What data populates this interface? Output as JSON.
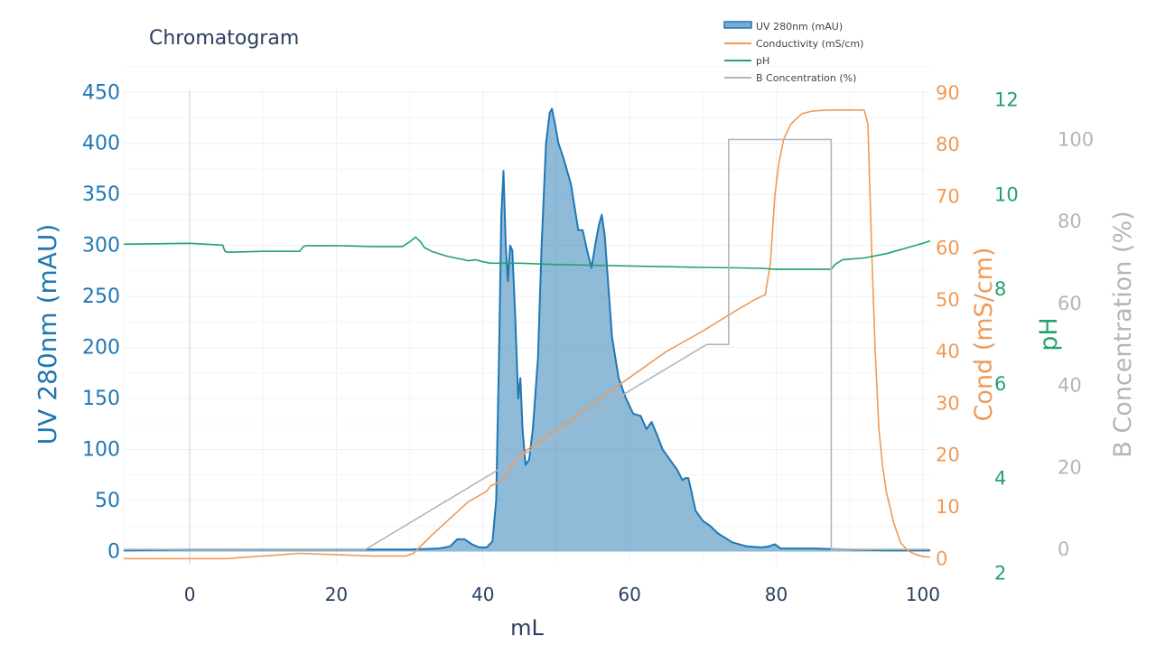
{
  "chart_data": {
    "type": "area",
    "title": "Chromatogram",
    "xlabel": "mL",
    "xlim": [
      -9,
      101
    ],
    "x_ticks": [
      0,
      20,
      40,
      60,
      80,
      100
    ],
    "grid": true,
    "legend_position": "top-right",
    "axes": {
      "uv": {
        "label": "UV 280nm (mAU)",
        "color": "#1f77b4",
        "range": [
          -12,
          452
        ],
        "ticks": [
          0,
          50,
          100,
          150,
          200,
          250,
          300,
          350,
          400,
          450
        ]
      },
      "cond": {
        "label": "Cond (mS/cm)",
        "color": "#ef9a57",
        "range": [
          -1,
          90.5
        ],
        "ticks": [
          0,
          10,
          20,
          30,
          40,
          50,
          60,
          70,
          80,
          90
        ]
      },
      "ph": {
        "label": "pH",
        "color": "#21a36b",
        "range": [
          2.2,
          12.2
        ],
        "ticks": [
          2,
          4,
          6,
          8,
          10,
          12
        ]
      },
      "bconc": {
        "label": "B Concentration (%)",
        "color": "#b5b5b5",
        "range": [
          -3.5,
          112
        ],
        "ticks": [
          0,
          20,
          40,
          60,
          80,
          100
        ]
      }
    },
    "series": [
      {
        "name": "UV 280nm (mAU)",
        "axis": "uv",
        "color": "#1f77b4",
        "fill": true,
        "x": [
          -9,
          0,
          10,
          20,
          30,
          34,
          35.5,
          36.5,
          37.5,
          38.5,
          39.5,
          40.5,
          41.3,
          41.8,
          42.2,
          42.5,
          42.8,
          43.1,
          43.4,
          43.7,
          44,
          44.4,
          44.8,
          45.1,
          45.4,
          45.8,
          46.3,
          46.8,
          47.5,
          48,
          48.6,
          49.1,
          49.4,
          49.8,
          50.3,
          51,
          52,
          53,
          53.6,
          54.2,
          54.8,
          55.3,
          55.8,
          56.2,
          56.6,
          57,
          57.6,
          58.5,
          59.5,
          60.5,
          61.5,
          62.3,
          63,
          63.7,
          64.5,
          65.5,
          66.5,
          67.2,
          67.6,
          68,
          68.4,
          69,
          70,
          71,
          72,
          74,
          76,
          78,
          79,
          79.8,
          80.6,
          82,
          85,
          90,
          95,
          101
        ],
        "y": [
          1,
          2,
          2,
          2,
          2,
          3,
          5,
          12,
          12,
          7,
          4,
          4,
          10,
          50,
          200,
          330,
          373,
          300,
          265,
          300,
          295,
          230,
          150,
          170,
          120,
          85,
          90,
          120,
          190,
          300,
          400,
          430,
          434,
          420,
          400,
          385,
          360,
          315,
          315,
          295,
          278,
          300,
          320,
          330,
          310,
          270,
          210,
          170,
          150,
          135,
          133,
          120,
          127,
          115,
          100,
          90,
          80,
          70,
          72,
          72,
          60,
          40,
          30,
          25,
          18,
          9,
          5,
          4,
          5,
          7,
          3,
          3,
          3,
          2,
          1,
          1
        ]
      },
      {
        "name": "Conductivity (mS/cm)",
        "axis": "cond",
        "color": "#ef9a57",
        "fill": false,
        "x": [
          -9,
          5,
          15,
          25,
          29.5,
          30.5,
          33,
          38,
          40.5,
          41,
          42.5,
          45,
          50,
          55,
          60,
          65,
          70,
          74,
          77,
          78.5,
          79.2,
          79.8,
          80.3,
          81,
          82,
          83.5,
          85,
          87,
          88,
          90,
          92,
          92.5,
          93,
          93.5,
          94,
          94.5,
          95,
          96,
          97,
          98,
          99,
          100,
          101
        ],
        "y": [
          0,
          0,
          1,
          0.5,
          0.5,
          1,
          4.5,
          11,
          13,
          14,
          15,
          20,
          25,
          30,
          35,
          40,
          44,
          47.5,
          50,
          51,
          57,
          70,
          76,
          81,
          84,
          86,
          86.5,
          86.7,
          86.7,
          86.7,
          86.7,
          84,
          60,
          40,
          25,
          18,
          13,
          7,
          3,
          1.5,
          0.8,
          0.4,
          0.3
        ]
      },
      {
        "name": "pH",
        "axis": "ph",
        "color": "#21a36b",
        "fill": false,
        "x": [
          -9,
          0,
          4.5,
          4.8,
          5.2,
          10,
          15,
          15.5,
          16,
          20,
          25,
          29,
          30,
          30.8,
          31.5,
          32,
          33,
          35,
          38,
          39,
          40,
          41,
          45,
          50,
          60,
          70,
          75,
          78,
          80,
          85,
          87.5,
          88,
          89,
          92,
          95,
          100,
          101
        ],
        "y": [
          8.95,
          8.97,
          8.93,
          8.8,
          8.78,
          8.8,
          8.8,
          8.9,
          8.92,
          8.92,
          8.9,
          8.9,
          9,
          9.1,
          9,
          8.88,
          8.8,
          8.7,
          8.6,
          8.62,
          8.58,
          8.55,
          8.55,
          8.52,
          8.49,
          8.46,
          8.45,
          8.44,
          8.42,
          8.42,
          8.42,
          8.52,
          8.62,
          8.66,
          8.75,
          8.97,
          9.02
        ]
      },
      {
        "name": "B Concentration (%)",
        "axis": "bconc",
        "color": "#b5b5b5",
        "fill": false,
        "x": [
          -9,
          24,
          70.5,
          73.5,
          73.5,
          87.5,
          87.5,
          101
        ],
        "y": [
          0,
          0,
          50,
          50,
          100,
          100,
          0,
          0
        ]
      }
    ]
  }
}
